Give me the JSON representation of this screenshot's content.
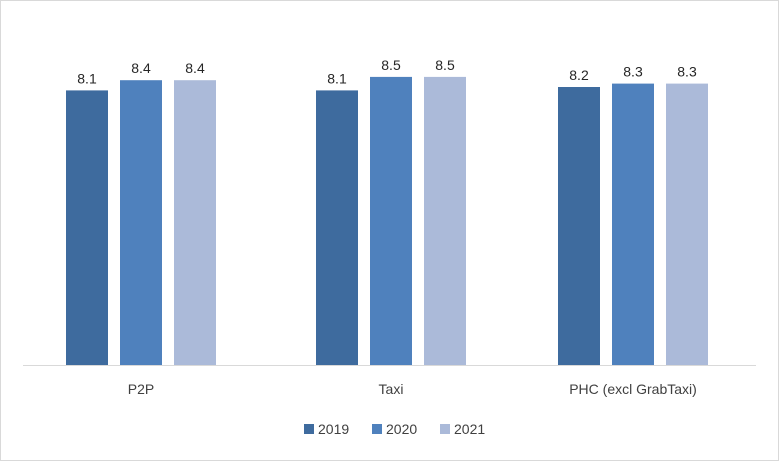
{
  "chart_data": {
    "type": "bar",
    "title": "",
    "xlabel": "",
    "ylabel": "",
    "categories": [
      "P2P",
      "Taxi",
      "PHC (excl GrabTaxi)"
    ],
    "series": [
      {
        "name": "2019",
        "values": [
          8.1,
          8.1,
          8.2
        ],
        "color": "#3e6b9e"
      },
      {
        "name": "2020",
        "values": [
          8.4,
          8.5,
          8.3
        ],
        "color": "#4f81bd"
      },
      {
        "name": "2021",
        "values": [
          8.4,
          8.5,
          8.3
        ],
        "color": "#abbad9"
      }
    ],
    "ylim": [
      0,
      10
    ],
    "grid": false,
    "legend_position": "bottom",
    "data_labels": true
  }
}
